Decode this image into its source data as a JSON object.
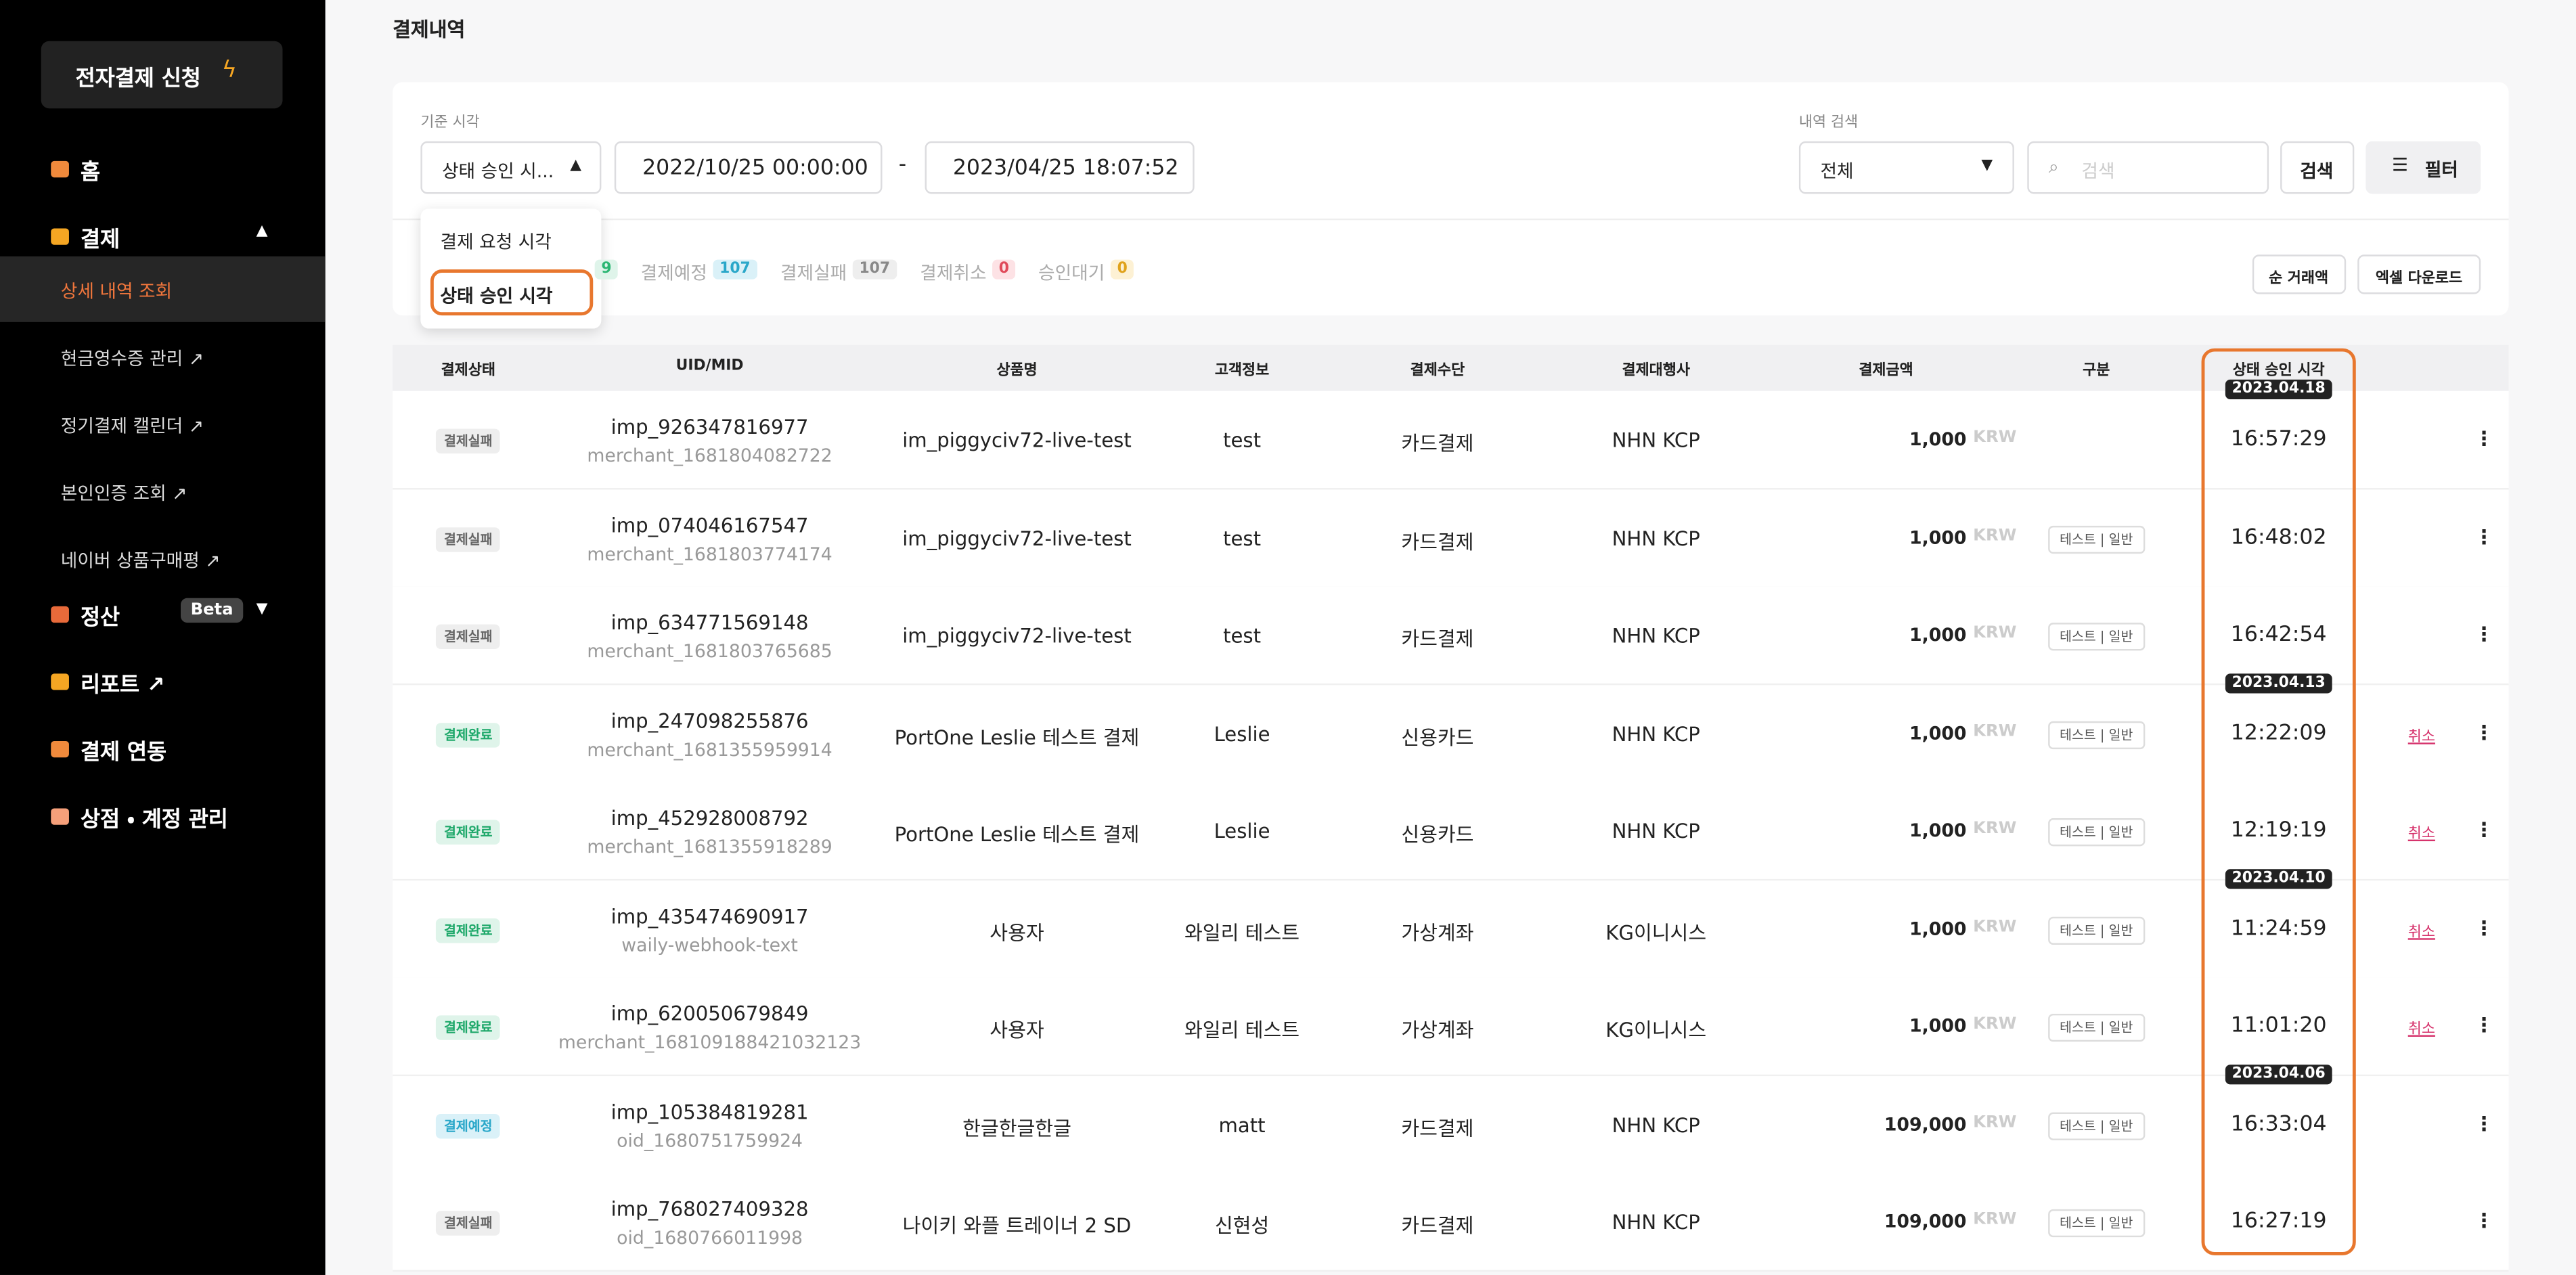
{
  "sidebar": {
    "apply_button": "전자결제 신청",
    "menu": [
      {
        "label": "홈"
      },
      {
        "label": "결제",
        "children": [
          {
            "label": "상세 내역 조회"
          },
          {
            "label": "현금영수증 관리 ↗"
          },
          {
            "label": "정기결제 캘린더 ↗"
          },
          {
            "label": "본인인증 조회 ↗"
          },
          {
            "label": "네이버 상품구매평 ↗"
          }
        ]
      },
      {
        "label": "정산",
        "badge": "Beta"
      },
      {
        "label": "리포트 ↗"
      },
      {
        "label": "결제 연동"
      },
      {
        "label": "상점 ・ 계정 관리"
      }
    ]
  },
  "header": {
    "title": "결제내역"
  },
  "filter": {
    "time_label": "기준 시각",
    "time_select": "상태 승인 시...",
    "start": "2022/10/25 00:00:00",
    "separator": "-",
    "end": "2023/04/25 18:07:52",
    "search_label": "내역 검색",
    "search_select": "전체",
    "search_placeholder": "검색",
    "search_button": "검색",
    "filter_button": "필터",
    "dropdown": [
      "결제 요청 시각",
      "상태 승인 시각"
    ]
  },
  "tabs": [
    {
      "count": "9"
    },
    {
      "label": "결제예정",
      "count": "107"
    },
    {
      "label": "결제실패",
      "count": "107"
    },
    {
      "label": "결제취소",
      "count": "0"
    },
    {
      "label": "승인대기",
      "count": "0"
    }
  ],
  "actions": [
    "순 거래액",
    "엑셀 다운로드"
  ],
  "table": {
    "columns": [
      "결제상태",
      "UID/MID",
      "상품명",
      "고객정보",
      "결제수단",
      "결제대행사",
      "결제금액",
      "구분",
      "상태 승인 시각"
    ],
    "rows": [
      {
        "status": "결제실패",
        "uid": "imp_926347816977",
        "mid": "merchant_1681804082722",
        "product": "im_piggyciv72-live-test",
        "customer": "test",
        "method": "카드결제",
        "pg": "NHN KCP",
        "amount": "1,000",
        "currency": "KRW",
        "date": "2023.04.18",
        "time": "16:57:29"
      },
      {
        "status": "결제실패",
        "uid": "imp_074046167547",
        "mid": "merchant_1681803774174",
        "product": "im_piggyciv72-live-test",
        "customer": "test",
        "method": "카드결제",
        "pg": "NHN KCP",
        "amount": "1,000",
        "currency": "KRW",
        "kind": "테스트 | 일반",
        "time": "16:48:02"
      },
      {
        "status": "결제실패",
        "uid": "imp_634771569148",
        "mid": "merchant_1681803765685",
        "product": "im_piggyciv72-live-test",
        "customer": "test",
        "method": "카드결제",
        "pg": "NHN KCP",
        "amount": "1,000",
        "currency": "KRW",
        "kind": "테스트 | 일반",
        "time": "16:42:54"
      },
      {
        "status": "결제완료",
        "uid": "imp_247098255876",
        "mid": "merchant_1681355959914",
        "product": "PortOne Leslie 테스트 결제",
        "customer": "Leslie",
        "method": "신용카드",
        "pg": "NHN KCP",
        "amount": "1,000",
        "currency": "KRW",
        "kind": "테스트 | 일반",
        "date": "2023.04.13",
        "time": "12:22:09",
        "cancel": "취소"
      },
      {
        "status": "결제완료",
        "uid": "imp_452928008792",
        "mid": "merchant_1681355918289",
        "product": "PortOne Leslie 테스트 결제",
        "customer": "Leslie",
        "method": "신용카드",
        "pg": "NHN KCP",
        "amount": "1,000",
        "currency": "KRW",
        "kind": "테스트 | 일반",
        "time": "12:19:19",
        "cancel": "취소"
      },
      {
        "status": "결제완료",
        "uid": "imp_435474690917",
        "mid": "waily-webhook-text",
        "product": "사용자",
        "customer": "와일리 테스트",
        "method": "가상계좌",
        "pg": "KG이니시스",
        "amount": "1,000",
        "currency": "KRW",
        "kind": "테스트 | 일반",
        "date": "2023.04.10",
        "time": "11:24:59",
        "cancel": "취소"
      },
      {
        "status": "결제완료",
        "uid": "imp_620050679849",
        "mid": "merchant_168109188421032123",
        "product": "사용자",
        "customer": "와일리 테스트",
        "method": "가상계좌",
        "pg": "KG이니시스",
        "amount": "1,000",
        "currency": "KRW",
        "kind": "테스트 | 일반",
        "time": "11:01:20",
        "cancel": "취소"
      },
      {
        "status": "결제예정",
        "uid": "imp_105384819281",
        "mid": "oid_1680751759924",
        "product": "한글한글한글",
        "customer": "matt",
        "method": "카드결제",
        "pg": "NHN KCP",
        "amount": "109,000",
        "currency": "KRW",
        "kind": "테스트 | 일반",
        "date": "2023.04.06",
        "time": "16:33:04"
      },
      {
        "status": "결제실패",
        "uid": "imp_768027409328",
        "mid": "oid_1680766011998",
        "product": "나이키 와플 트레이너 2 SD",
        "customer": "신현성",
        "method": "카드결제",
        "pg": "NHN KCP",
        "amount": "109,000",
        "currency": "KRW",
        "kind": "테스트 | 일반",
        "time": "16:27:19"
      }
    ]
  }
}
